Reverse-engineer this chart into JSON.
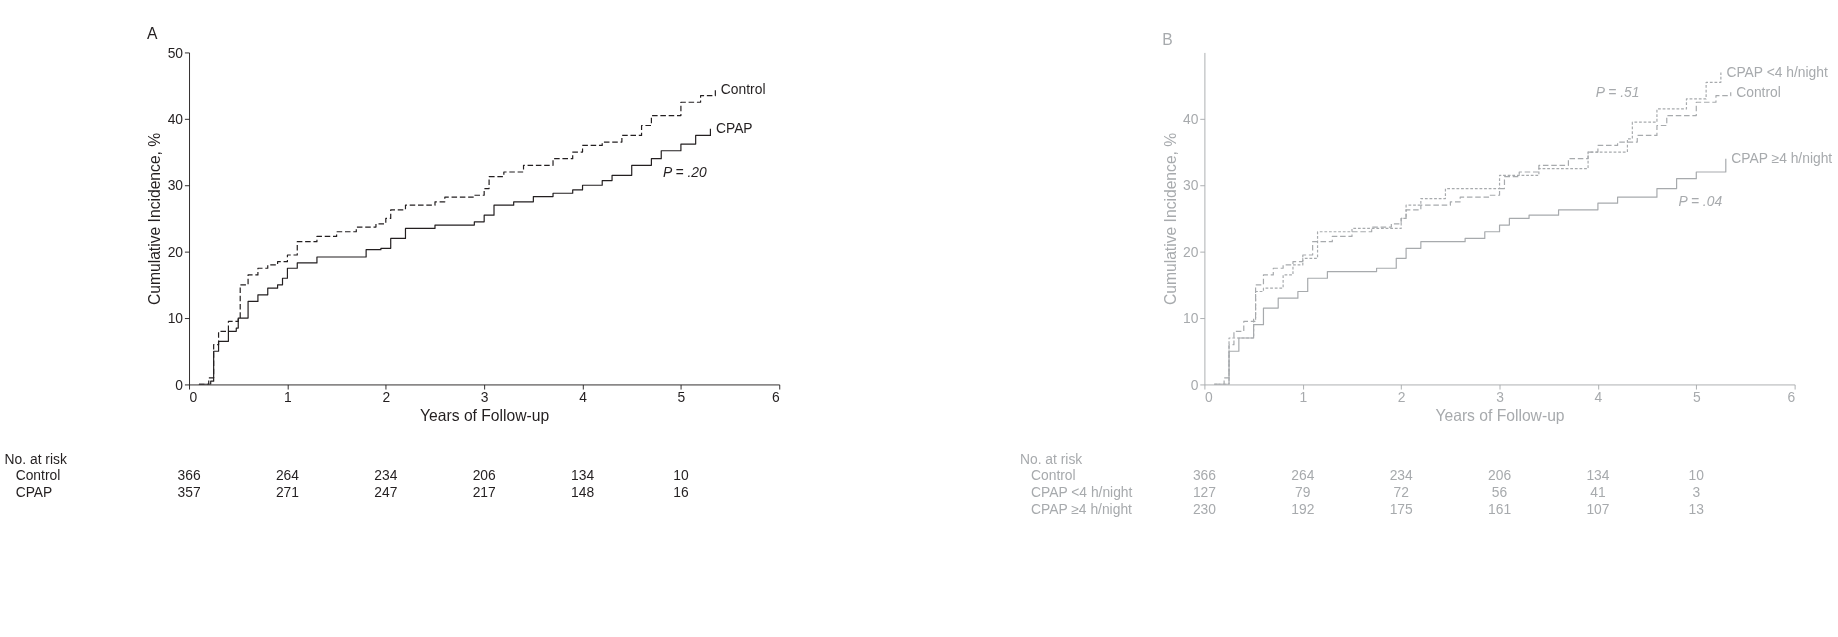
{
  "chart_data": [
    {
      "type": "step",
      "title": "A",
      "xlabel": "Years of Follow-up",
      "ylabel": "Cumulative Incidence, %",
      "xlim": [
        0,
        6
      ],
      "xticks": [
        0,
        1,
        2,
        3,
        4,
        5,
        6
      ],
      "ylim": [
        0,
        50
      ],
      "yticks": [
        0,
        10,
        20,
        30,
        40,
        50
      ],
      "grid": false,
      "series": [
        {
          "name": "Control",
          "color": "#231f20",
          "line_style": "dashed",
          "x": [
            0.1,
            0.2,
            0.25,
            0.3,
            0.4,
            0.5,
            0.52,
            0.6,
            0.7,
            0.8,
            0.9,
            1.0,
            1.1,
            1.3,
            1.5,
            1.7,
            1.9,
            2.0,
            2.05,
            2.2,
            2.5,
            2.6,
            2.9,
            3.0,
            3.05,
            3.2,
            3.4,
            3.7,
            3.9,
            4.0,
            4.2,
            4.4,
            4.6,
            4.7,
            5.0,
            5.2,
            5.35
          ],
          "values": [
            0,
            1,
            6,
            8,
            9.5,
            10,
            15,
            16.5,
            17.5,
            18,
            18.5,
            19.5,
            21.5,
            22.3,
            23,
            23.7,
            24.2,
            25,
            26.3,
            27,
            27.5,
            28.2,
            28.5,
            29.5,
            31.3,
            32,
            33,
            34,
            35,
            36,
            36.5,
            37.5,
            39,
            40.5,
            42.5,
            43.5,
            44.5
          ]
        },
        {
          "name": "CPAP",
          "color": "#231f20",
          "line_style": "solid",
          "x": [
            0.1,
            0.22,
            0.25,
            0.3,
            0.4,
            0.48,
            0.5,
            0.6,
            0.7,
            0.8,
            0.9,
            0.95,
            1.0,
            1.1,
            1.3,
            1.8,
            1.95,
            2.05,
            2.2,
            2.5,
            2.9,
            3.0,
            3.1,
            3.3,
            3.5,
            3.7,
            3.9,
            4.0,
            4.2,
            4.3,
            4.5,
            4.7,
            4.8,
            5.0,
            5.15,
            5.3
          ],
          "values": [
            0,
            0.5,
            5,
            6.5,
            8,
            8.5,
            10,
            12.5,
            13.5,
            14.5,
            15,
            16,
            17.5,
            18.3,
            19.2,
            20.3,
            20.5,
            22,
            23.5,
            24,
            24.5,
            25.5,
            27,
            27.5,
            28.3,
            28.8,
            29.3,
            30,
            30.7,
            31.5,
            33,
            34,
            35.2,
            36.2,
            37.5,
            38.5
          ]
        }
      ],
      "annotations": [
        "P = .20",
        "No. at risk",
        "Control\t366\t264\t234\t206\t134\t10",
        "CPAP\t357\t271\t247\t217\t148\t16"
      ]
    },
    {
      "type": "step",
      "title": "B",
      "xlabel": "Years of Follow-up",
      "ylabel": "Cumulative Incidence, %",
      "xlim": [
        0,
        6
      ],
      "xticks": [
        0,
        1,
        2,
        3,
        4,
        5,
        6
      ],
      "ylim": [
        0,
        50
      ],
      "yticks": [
        0,
        10,
        20,
        30,
        40
      ],
      "grid": false,
      "series": [
        {
          "name": "Control",
          "color": "#a7aaad",
          "line_style": "dashed",
          "x": [
            0.1,
            0.2,
            0.25,
            0.3,
            0.4,
            0.5,
            0.52,
            0.6,
            0.7,
            0.8,
            0.9,
            1.0,
            1.1,
            1.3,
            1.5,
            1.7,
            1.9,
            2.0,
            2.05,
            2.2,
            2.5,
            2.6,
            2.9,
            3.0,
            3.05,
            3.2,
            3.4,
            3.7,
            3.9,
            4.0,
            4.2,
            4.4,
            4.6,
            4.7,
            5.0,
            5.2,
            5.35
          ],
          "values": [
            0,
            1,
            6,
            8,
            9.5,
            10,
            15,
            16.5,
            17.5,
            18,
            18.5,
            19.5,
            21.5,
            22.3,
            23,
            23.7,
            24.2,
            25,
            26.3,
            27,
            27.5,
            28.2,
            28.5,
            29.5,
            31.3,
            32,
            33,
            34,
            35,
            36,
            36.5,
            37.5,
            39,
            40.5,
            42.5,
            43.5,
            44
          ]
        },
        {
          "name": "CPAP <4 h/night",
          "color": "#a7aaad",
          "line_style": "dotted",
          "x": [
            0.1,
            0.25,
            0.5,
            0.52,
            0.6,
            0.8,
            0.9,
            1.0,
            1.15,
            1.5,
            2.0,
            2.05,
            2.2,
            2.45,
            3.0,
            3.4,
            3.9,
            4.3,
            4.35,
            4.6,
            4.9,
            5.1,
            5.25
          ],
          "values": [
            0,
            7,
            9.5,
            14,
            14.5,
            16.5,
            18,
            19,
            23,
            23.5,
            25,
            27,
            28,
            29.5,
            31.5,
            32.5,
            35,
            37,
            39.5,
            41.5,
            43,
            45.5,
            47
          ]
        },
        {
          "name": "CPAP ≥4 h/night",
          "color": "#a7aaad",
          "line_style": "solid",
          "x": [
            0.1,
            0.25,
            0.35,
            0.5,
            0.6,
            0.75,
            0.95,
            1.05,
            1.25,
            1.75,
            1.95,
            2.05,
            2.2,
            2.65,
            2.85,
            3.0,
            3.1,
            3.3,
            3.6,
            4.0,
            4.2,
            4.6,
            4.8,
            5.0,
            5.3
          ],
          "values": [
            0,
            5,
            7,
            9,
            11.5,
            13,
            14,
            16,
            17,
            17.5,
            19,
            20.5,
            21.5,
            22,
            23,
            24,
            25,
            25.5,
            26.3,
            27.3,
            28.2,
            29.5,
            31,
            32,
            34
          ]
        }
      ],
      "annotations": [
        "P = .51",
        "P = .04",
        "No. at risk",
        "Control\t366\t264\t234\t206\t134\t10",
        "CPAP <4 h/night\t127\t79\t72\t56\t41\t3",
        "CPAP ≥4 h/night\t230\t192\t175\t161\t107\t13"
      ]
    }
  ]
}
